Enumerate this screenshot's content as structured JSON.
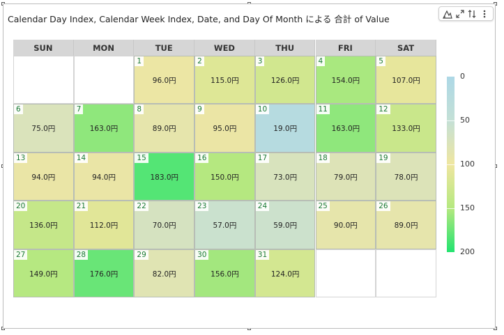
{
  "title": "Calendar Day Index, Calendar Week Index, Date, and Day Of Month による 合計 of Value",
  "toolbar": {
    "items": [
      {
        "icon": "chart-type-icon"
      },
      {
        "icon": "expand-icon"
      },
      {
        "icon": "sort-icon"
      },
      {
        "icon": "more-options-icon"
      }
    ]
  },
  "colors": {
    "scale_low": "#add8e6",
    "scale_mid": "#efe6a0",
    "scale_high": "#22e36f",
    "header_bg": "#d6d6d6",
    "day_number": "#1a7a34"
  },
  "chart_data": {
    "type": "heatmap",
    "title": "Calendar Day Index, Calendar Week Index, Date, and Day Of Month による 合計 of Value",
    "weekdays": [
      "SUN",
      "MON",
      "TUE",
      "WED",
      "THU",
      "FRI",
      "SAT"
    ],
    "first_weekday_index": 2,
    "days": [
      1,
      2,
      3,
      4,
      5,
      6,
      7,
      8,
      9,
      10,
      11,
      12,
      13,
      14,
      15,
      16,
      17,
      18,
      19,
      20,
      21,
      22,
      23,
      24,
      25,
      26,
      27,
      28,
      29,
      30,
      31
    ],
    "values": [
      96,
      115,
      126,
      154,
      107,
      75,
      163,
      89,
      95,
      19,
      163,
      133,
      94,
      94,
      183,
      150,
      73,
      79,
      78,
      136,
      112,
      70,
      57,
      59,
      90,
      89,
      149,
      176,
      82,
      156,
      124
    ],
    "value_labels": [
      "96.0円",
      "115.0円",
      "126.0円",
      "154.0円",
      "107.0円",
      "75.0円",
      "163.0円",
      "89.0円",
      "95.0円",
      "19.0円",
      "163.0円",
      "133.0円",
      "94.0円",
      "94.0円",
      "183.0円",
      "150.0円",
      "73.0円",
      "79.0円",
      "78.0円",
      "136.0円",
      "112.0円",
      "70.0円",
      "57.0円",
      "59.0円",
      "90.0円",
      "89.0円",
      "149.0円",
      "176.0円",
      "82.0円",
      "156.0円",
      "124.0円"
    ],
    "color_scale": {
      "min": 0,
      "max": 200,
      "ticks": [
        "0",
        "50",
        "100",
        "150",
        "200"
      ]
    }
  }
}
